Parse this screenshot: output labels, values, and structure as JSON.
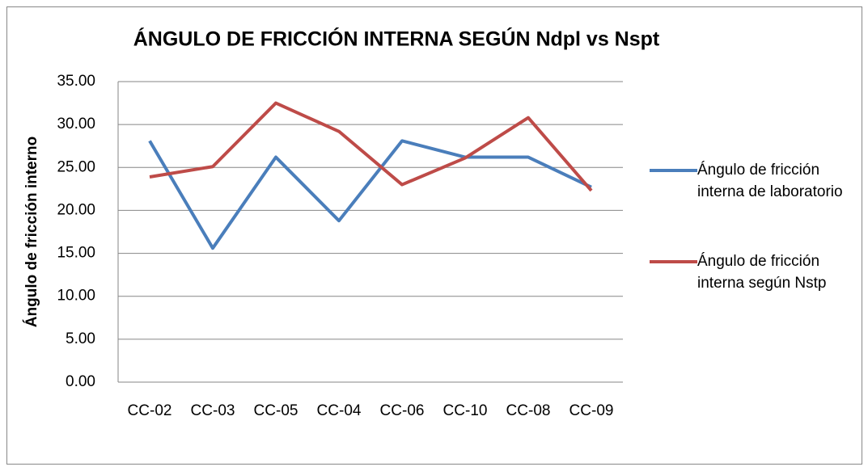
{
  "chart_data": {
    "type": "line",
    "title": "ÁNGULO DE FRICCIÓN INTERNA SEGÚN Ndpl vs Nspt",
    "y_label": "Ángulo de fricción interno",
    "categories": [
      "CC-02",
      "CC-03",
      "CC-05",
      "CC-04",
      "CC-06",
      "CC-10",
      "CC-08",
      "CC-09"
    ],
    "series": [
      {
        "name": "Ángulo de fricción interna de laboratorio",
        "color": "#4a7ebb",
        "values": [
          28.1,
          15.6,
          26.2,
          18.8,
          28.1,
          26.2,
          26.2,
          22.7
        ]
      },
      {
        "name": "Ángulo de fricción interna según Nstp",
        "color": "#be4b48",
        "values": [
          23.9,
          25.1,
          32.5,
          29.2,
          23.0,
          26.1,
          30.8,
          22.3
        ]
      }
    ],
    "ylim": [
      0,
      35
    ],
    "yticks": [
      {
        "value": 0,
        "label": "0.00"
      },
      {
        "value": 5,
        "label": "5.00"
      },
      {
        "value": 10,
        "label": "10.00"
      },
      {
        "value": 15,
        "label": "15.00"
      },
      {
        "value": 20,
        "label": "20.00"
      },
      {
        "value": 25,
        "label": "25.00"
      },
      {
        "value": 30,
        "label": "30.00"
      },
      {
        "value": 35,
        "label": "35.00"
      }
    ],
    "grid": true,
    "legend": "right"
  }
}
